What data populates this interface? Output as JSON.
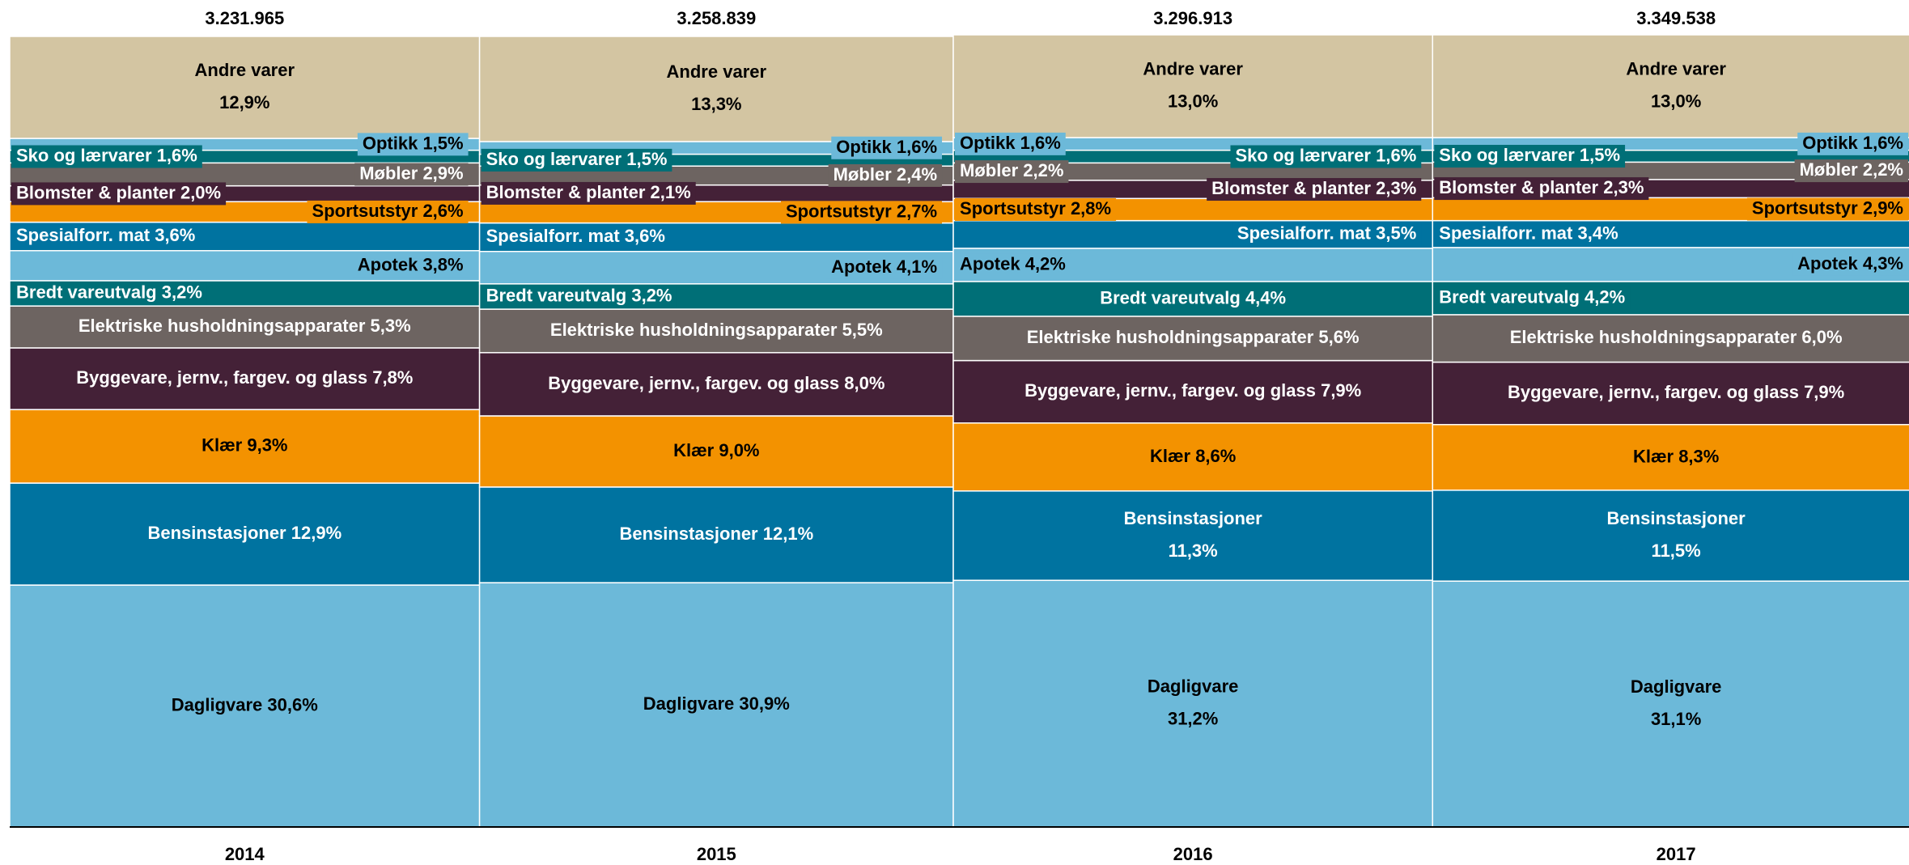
{
  "chart_data": {
    "type": "mekko",
    "categories": [
      "2014",
      "2015",
      "2016",
      "2017"
    ],
    "totals": [
      {
        "value": 3231965,
        "label": "3.231.965"
      },
      {
        "value": 3258839,
        "label": "3.258.839"
      },
      {
        "value": 3296913,
        "label": "3.296.913"
      },
      {
        "value": 3349538,
        "label": "3.349.538"
      }
    ],
    "ylim": [
      0,
      100
    ],
    "series": [
      {
        "name": "Dagligvare",
        "color": "#6cb9d9",
        "values": [
          30.6,
          30.9,
          31.2,
          31.1
        ],
        "value_labels": [
          "30,6%",
          "30,9%",
          "31,2%",
          "31,1%"
        ]
      },
      {
        "name": "Bensinstasjoner",
        "color": "#0073a0",
        "values": [
          12.9,
          12.1,
          11.3,
          11.5
        ],
        "value_labels": [
          "12,9%",
          "12,1%",
          "11,3%",
          "11,5%"
        ]
      },
      {
        "name": "Klær",
        "color": "#f39200",
        "values": [
          9.3,
          9.0,
          8.6,
          8.3
        ],
        "value_labels": [
          "9,3%",
          "9,0%",
          "8,6%",
          "8,3%"
        ]
      },
      {
        "name": "Byggevare, jernv., fargev. og glass",
        "color": "#442137",
        "values": [
          7.8,
          8.0,
          7.9,
          7.9
        ],
        "value_labels": [
          "7,8%",
          "8,0%",
          "7,9%",
          "7,9%"
        ]
      },
      {
        "name": "Elektriske husholdningsapparater",
        "color": "#6d6461",
        "values": [
          5.3,
          5.5,
          5.6,
          6.0
        ],
        "value_labels": [
          "5,3%",
          "5,5%",
          "5,6%",
          "6,0%"
        ]
      },
      {
        "name": "Bredt vareutvalg",
        "color": "#006f77",
        "values": [
          3.2,
          3.2,
          4.4,
          4.2
        ],
        "value_labels": [
          "3,2%",
          "3,2%",
          "4,4%",
          "4,2%"
        ]
      },
      {
        "name": "Apotek",
        "color": "#6cb9d9",
        "values": [
          3.8,
          4.1,
          4.2,
          4.3
        ],
        "value_labels": [
          "3,8%",
          "4,1%",
          "4,2%",
          "4,3%"
        ]
      },
      {
        "name": "Spesialforr. mat",
        "color": "#0073a0",
        "values": [
          3.6,
          3.6,
          3.5,
          3.4
        ],
        "value_labels": [
          "3,6%",
          "3,6%",
          "3,5%",
          "3,4%"
        ]
      },
      {
        "name": "Sportsutstyr",
        "color": "#f39200",
        "values": [
          2.6,
          2.7,
          2.8,
          2.9
        ],
        "value_labels": [
          "2,6%",
          "2,7%",
          "2,8%",
          "2,9%"
        ]
      },
      {
        "name": "Blomster & planter",
        "color": "#442137",
        "values": [
          2.0,
          2.1,
          2.3,
          2.3
        ],
        "value_labels": [
          "2,0%",
          "2,1%",
          "2,3%",
          "2,3%"
        ]
      },
      {
        "name": "Møbler",
        "color": "#6d6461",
        "values": [
          2.9,
          2.4,
          2.2,
          2.2
        ],
        "value_labels": [
          "2,9%",
          "2,4%",
          "2,2%",
          "2,2%"
        ]
      },
      {
        "name": "Sko og lærvarer",
        "color": "#006f77",
        "values": [
          1.6,
          1.5,
          1.6,
          1.5
        ],
        "value_labels": [
          "1,6%",
          "1,5%",
          "1,6%",
          "1,5%"
        ]
      },
      {
        "name": "Optikk",
        "color": "#6cb9d9",
        "values": [
          1.5,
          1.6,
          1.6,
          1.6
        ],
        "value_labels": [
          "1,5%",
          "1,6%",
          "1,6%",
          "1,6%"
        ]
      },
      {
        "name": "Andre varer",
        "color": "#d3c5a2",
        "values": [
          12.9,
          13.3,
          13.0,
          13.0
        ],
        "value_labels": [
          "12,9%",
          "13,3%",
          "13,0%",
          "13,0%"
        ]
      }
    ]
  }
}
